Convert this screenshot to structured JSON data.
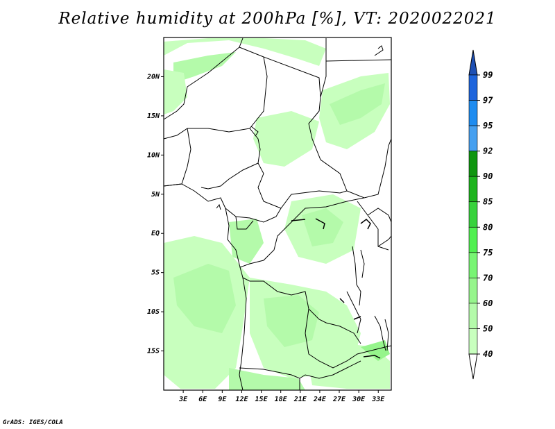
{
  "title": "Relative humidity at 200hPa [%], VT: 2020022021",
  "credit": "GrADS: IGES/COLA",
  "map": {
    "lat_labels": [
      "20N",
      "15N",
      "10N",
      "5N",
      "EQ",
      "5S",
      "10S",
      "15S"
    ],
    "lon_labels": [
      "3E",
      "6E",
      "9E",
      "12E",
      "15E",
      "18E",
      "21E",
      "24E",
      "27E",
      "30E",
      "33E"
    ],
    "lat_values": [
      20,
      15,
      10,
      5,
      0,
      -5,
      -10,
      -15
    ],
    "lon_values": [
      3,
      6,
      9,
      12,
      15,
      18,
      21,
      24,
      27,
      30,
      33
    ],
    "lat_range": [
      -20,
      25
    ],
    "lon_range": [
      0,
      35
    ]
  },
  "colorbar": {
    "levels": [
      "99",
      "97",
      "95",
      "92",
      "90",
      "85",
      "80",
      "75",
      "70",
      "60",
      "50",
      "40"
    ],
    "colors": [
      "#1e64dc",
      "#1e8cf0",
      "#46a0f0",
      "#0f960f",
      "#1eb41e",
      "#37d23c",
      "#50f050",
      "#78f573",
      "#96f58c",
      "#b4faaa",
      "#c8ffbe",
      "#f0fff0"
    ],
    "top_triangle_color": "#1e50b4",
    "bottom_triangle_color": "#ffffff"
  },
  "colors": {
    "light_green": "#c8ffbe",
    "mid_green": "#b4faaa",
    "deeper_green": "#96f58c"
  }
}
